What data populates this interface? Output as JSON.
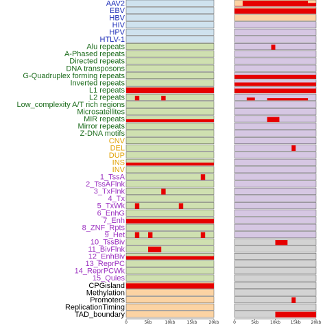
{
  "chart_data": {
    "type": "area",
    "xlim": [
      0,
      20000
    ],
    "x_ticks": [
      "0",
      "5kb",
      "10kb",
      "15kb",
      "20kb"
    ],
    "colors": {
      "virus_panel": "#cfe2ee",
      "virus_label": "#1f2fb8",
      "repeat_panel": "#cfe0b0",
      "repeat_label": "#1a6b1a",
      "sv_label": "#e0a000",
      "state_label": "#9b30c0",
      "other_label": "#000000",
      "right_virus_panel": "#d6c7e3",
      "right_grey_panel": "#d3d3d3",
      "peach_panel": "#fcd3a3",
      "bar": "#e60000"
    },
    "rows": [
      {
        "label": "AAV2",
        "group": "virus",
        "left": [],
        "right": [
          [
            0,
            2,
            0
          ],
          [
            2,
            18,
            1
          ],
          [
            18,
            20,
            0.6
          ]
        ],
        "right_bg": "peach_panel"
      },
      {
        "label": "EBV",
        "group": "virus",
        "left": [],
        "right": [
          [
            0,
            20,
            0.9
          ]
        ],
        "right_bg": "peach_panel"
      },
      {
        "label": "HBV",
        "group": "virus",
        "left": [],
        "right": [],
        "right_bg": "peach_panel"
      },
      {
        "label": "HIV",
        "group": "virus",
        "left": [],
        "right": [],
        "right_bg": "right_virus_panel"
      },
      {
        "label": "HPV",
        "group": "virus",
        "left": [],
        "right": [],
        "right_bg": "right_virus_panel"
      },
      {
        "label": "HTLV-1",
        "group": "virus",
        "left": [],
        "right": [],
        "right_bg": "right_virus_panel"
      },
      {
        "label": "Alu repeats",
        "group": "repeat",
        "left": [],
        "right": [
          [
            9,
            10,
            0.9
          ]
        ],
        "right_bg": "right_virus_panel"
      },
      {
        "label": "A-Phased repeats",
        "group": "repeat",
        "left": [],
        "right": [],
        "right_bg": "right_virus_panel"
      },
      {
        "label": "Directed repeats",
        "group": "repeat",
        "left": [],
        "right": [],
        "right_bg": "right_virus_panel"
      },
      {
        "label": "DNA transposons",
        "group": "repeat",
        "left": [],
        "right": [],
        "right_bg": "right_virus_panel"
      },
      {
        "label": "G-Quadruplex forming repeats",
        "group": "repeat",
        "left": [],
        "right": [
          [
            0,
            20,
            0.7
          ]
        ],
        "right_bg": "right_virus_panel"
      },
      {
        "label": "Inverted repeats",
        "group": "repeat",
        "left": [],
        "right": [
          [
            0,
            20,
            0.6
          ]
        ],
        "right_bg": "right_virus_panel"
      },
      {
        "label": "L1 repeats",
        "group": "repeat",
        "left": [
          [
            0,
            20,
            1
          ]
        ],
        "right": [
          [
            0,
            20,
            0.8
          ]
        ],
        "right_bg": "right_virus_panel"
      },
      {
        "label": "L2 repeats",
        "group": "repeat",
        "left": [
          [
            2,
            3,
            0.8
          ],
          [
            8,
            9,
            0.8
          ]
        ],
        "right": [
          [
            3,
            5,
            0.5
          ],
          [
            8,
            18,
            0.4
          ]
        ],
        "right_bg": "right_virus_panel"
      },
      {
        "label": "Low_complexity A/T rich regions",
        "group": "repeat",
        "left": [],
        "right": [],
        "right_bg": "right_virus_panel"
      },
      {
        "label": "Microsatellites",
        "group": "repeat",
        "left": [],
        "right": [],
        "right_bg": "right_virus_panel"
      },
      {
        "label": "MIR repeats",
        "group": "repeat",
        "left": [
          [
            0,
            20,
            0.5
          ]
        ],
        "right": [
          [
            8,
            11,
            0.9
          ]
        ],
        "right_bg": "right_virus_panel"
      },
      {
        "label": "Mirror repeats",
        "group": "repeat",
        "left": [],
        "right": [],
        "right_bg": "right_virus_panel"
      },
      {
        "label": "Z-DNA motifs",
        "group": "repeat",
        "left": [],
        "right": [],
        "right_bg": "right_virus_panel"
      },
      {
        "label": "CNV",
        "group": "sv",
        "left": [],
        "right": [],
        "right_bg": "right_virus_panel"
      },
      {
        "label": "DEL",
        "group": "sv",
        "left": [],
        "right": [
          [
            14,
            15,
            1
          ]
        ],
        "right_bg": "right_virus_panel"
      },
      {
        "label": "DUP",
        "group": "sv",
        "left": [],
        "right": [],
        "right_bg": "right_virus_panel"
      },
      {
        "label": "INS",
        "group": "sv",
        "left": [
          [
            0,
            20,
            0.5
          ]
        ],
        "right": [],
        "right_bg": "right_virus_panel"
      },
      {
        "label": "INV",
        "group": "sv",
        "left": [],
        "right": [],
        "right_bg": "right_virus_panel"
      },
      {
        "label": "1_TssA",
        "group": "state",
        "left": [
          [
            17,
            18,
            1
          ]
        ],
        "right": [],
        "right_bg": "right_virus_panel"
      },
      {
        "label": "2_TssAFlnk",
        "group": "state",
        "left": [],
        "right": [],
        "right_bg": "right_virus_panel"
      },
      {
        "label": "3_TxFlnk",
        "group": "state",
        "left": [
          [
            8,
            9,
            1
          ]
        ],
        "right": [],
        "right_bg": "right_virus_panel"
      },
      {
        "label": "4_Tx",
        "group": "state",
        "left": [],
        "right": [],
        "right_bg": "right_virus_panel"
      },
      {
        "label": "5_TxWk",
        "group": "state",
        "left": [
          [
            2,
            3,
            1
          ],
          [
            12,
            13,
            1
          ]
        ],
        "right": [],
        "right_bg": "right_virus_panel"
      },
      {
        "label": "6_EnhG",
        "group": "state",
        "left": [],
        "right": [],
        "right_bg": "right_virus_panel"
      },
      {
        "label": "7_Enh",
        "group": "state",
        "left": [
          [
            0,
            20,
            0.8
          ]
        ],
        "right": [],
        "right_bg": "right_virus_panel"
      },
      {
        "label": "8_ZNF_Rpts",
        "group": "state",
        "left": [],
        "right": [],
        "right_bg": "right_virus_panel"
      },
      {
        "label": "9_Het",
        "group": "state",
        "left": [
          [
            2,
            3,
            1
          ],
          [
            5,
            6,
            1
          ],
          [
            17,
            18,
            1
          ]
        ],
        "right": [],
        "right_bg": "right_virus_panel"
      },
      {
        "label": "10_TssBiv",
        "group": "state",
        "left": [],
        "right": [
          [
            10,
            13,
            0.9
          ]
        ],
        "right_bg": "right_grey_panel"
      },
      {
        "label": "11_BivFlnk",
        "group": "state",
        "left": [
          [
            5,
            8,
            1
          ]
        ],
        "right": [],
        "right_bg": "right_grey_panel"
      },
      {
        "label": "12_EnhBiv",
        "group": "state",
        "left": [
          [
            0,
            20,
            0.6
          ]
        ],
        "right": [],
        "right_bg": "right_grey_panel"
      },
      {
        "label": "13_ReprPC",
        "group": "state",
        "left": [],
        "right": [],
        "right_bg": "right_grey_panel"
      },
      {
        "label": "14_ReprPCWk",
        "group": "state",
        "left": [],
        "right": [],
        "right_bg": "right_grey_panel"
      },
      {
        "label": "15_Quies",
        "group": "state",
        "left": [],
        "right": [],
        "right_bg": "right_grey_panel"
      },
      {
        "label": "CPGisland",
        "group": "other",
        "left": [
          [
            0,
            20,
            0.9
          ]
        ],
        "right": [],
        "right_bg": "right_grey_panel"
      },
      {
        "label": "Methylation",
        "group": "other",
        "left": [],
        "right": [],
        "right_bg": "right_grey_panel"
      },
      {
        "label": "Promoters",
        "group": "other",
        "left": [],
        "right": [
          [
            14,
            15,
            1
          ]
        ],
        "right_bg": "right_grey_panel"
      },
      {
        "label": "ReplicationTiming",
        "group": "other",
        "left": [],
        "right": [],
        "right_bg": "right_grey_panel"
      },
      {
        "label": "TAD_boundary",
        "group": "other",
        "left": [],
        "right": [
          [
            10,
            20,
            1
          ]
        ],
        "right_bg": "right_grey_panel"
      }
    ]
  }
}
